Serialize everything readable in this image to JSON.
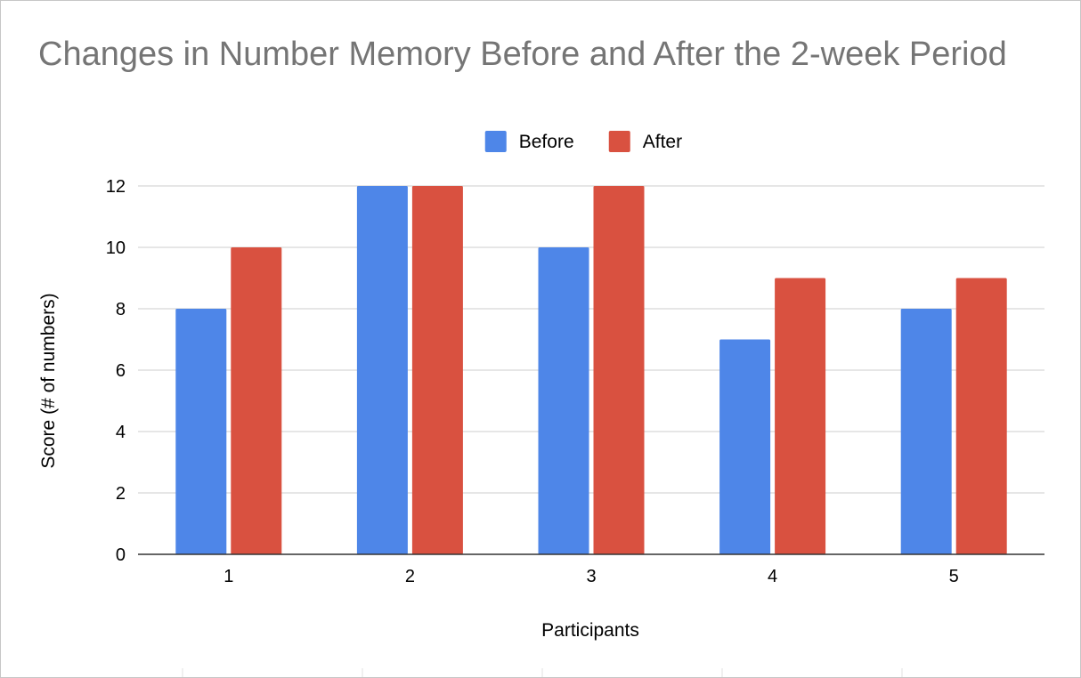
{
  "chart_data": {
    "type": "bar",
    "title": "Changes in Number Memory Before and After the 2-week Period",
    "xlabel": "Participants",
    "ylabel": "Score (# of numbers)",
    "categories": [
      "1",
      "2",
      "3",
      "4",
      "5"
    ],
    "series": [
      {
        "name": "Before",
        "color": "#4e86e8",
        "values": [
          8,
          12,
          10,
          7,
          8
        ]
      },
      {
        "name": "After",
        "color": "#d95140",
        "values": [
          10,
          12,
          12,
          9,
          9
        ]
      }
    ],
    "ylim": [
      0,
      12
    ],
    "yticks": [
      0,
      2,
      4,
      6,
      8,
      10,
      12
    ],
    "grid": true,
    "legend_position": "top-center"
  }
}
